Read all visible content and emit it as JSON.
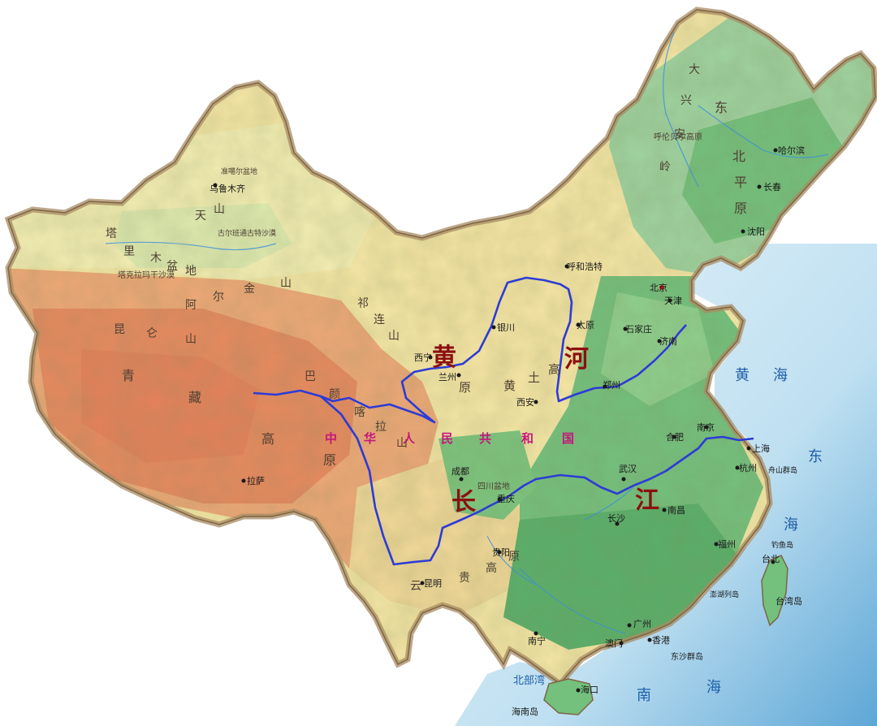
{
  "map": {
    "country_label": [
      "中",
      "华",
      "人",
      "民",
      "共",
      "和",
      "国"
    ],
    "rivers": {
      "yellow": [
        "黄",
        "河"
      ],
      "yangtze": [
        "长",
        "江"
      ]
    },
    "seas": {
      "yellow_sea": [
        "黄",
        "海"
      ],
      "east_sea": [
        "东",
        "海"
      ],
      "south_sea": [
        "南",
        "海"
      ],
      "beibu_gulf": "北部湾"
    },
    "cities": {
      "beijing": "北京",
      "tianjin": "天津",
      "shijiazhuang": "石家庄",
      "taiyuan": "太原",
      "jinan": "济南",
      "zhengzhou": "郑州",
      "xian": "西安",
      "yinchuan": "银川",
      "lanzhou": "兰州",
      "xining": "西宁",
      "hohhot": "呼和浩特",
      "harbin": "哈尔滨",
      "changchun": "长春",
      "shenyang": "沈阳",
      "urumqi": "乌鲁木齐",
      "lhasa": "拉萨",
      "chengdu": "成都",
      "chongqing": "重庆",
      "wuhan": "武汉",
      "changsha": "长沙",
      "nanchang": "南昌",
      "hefei": "合肥",
      "nanjing": "南京",
      "shanghai": "上海",
      "hangzhou": "杭州",
      "fuzhou": "福州",
      "taibei": "台北",
      "guiyang": "贵阳",
      "kunming": "昆明",
      "nanning": "南宁",
      "guangzhou": "广州",
      "xianggang": "香港",
      "aomen": "澳门",
      "haikou": "海口"
    },
    "islands": {
      "taiwan": "台湾岛",
      "hainan": "海南岛",
      "zhoushan": "舟山群岛",
      "diaoyu": "钓鱼岛",
      "dongsha": "东沙群岛",
      "penghu": "澎湖列岛"
    },
    "regions": {
      "tarim": [
        "塔",
        "里",
        "木",
        "盆",
        "地"
      ],
      "taklamakan": "塔克拉玛干沙漠",
      "gurbantunggut": "古尔班通古特沙漠",
      "tibet": [
        "青",
        "藏",
        "高",
        "原"
      ],
      "loess": [
        "黄",
        "土",
        "高",
        "原"
      ],
      "northeast": [
        "东",
        "北",
        "平",
        "原"
      ],
      "altun": [
        "阿",
        "尔",
        "金",
        "山"
      ],
      "qilian": [
        "祁",
        "连",
        "山"
      ],
      "kunlun": [
        "昆",
        "仑",
        "山"
      ],
      "tianshan": [
        "天",
        "山"
      ],
      "bayankala": [
        "巴",
        "颜",
        "喀",
        "拉",
        "山"
      ],
      "sichuan_basin": "四川盆地",
      "yungui": [
        "云",
        "贵",
        "高",
        "原"
      ],
      "junggar": "准噶尔盆地",
      "hulunbuir": "呼伦贝尔高原",
      "daxinganling": [
        "大",
        "兴",
        "安",
        "岭"
      ]
    }
  },
  "colors": {
    "ocean": "#bfe0f1",
    "ocean_deep": "#5ea7d6",
    "plateau": "#f0a877",
    "high_plateau": "#e8895f",
    "upland": "#f6e7a6",
    "plain": "#74c07d",
    "lowland": "#9fd3a0",
    "river_highlight": "#2d3bd6",
    "river_label": "#8b1010",
    "country_label": "#c4187c",
    "border": "#a88b63"
  }
}
